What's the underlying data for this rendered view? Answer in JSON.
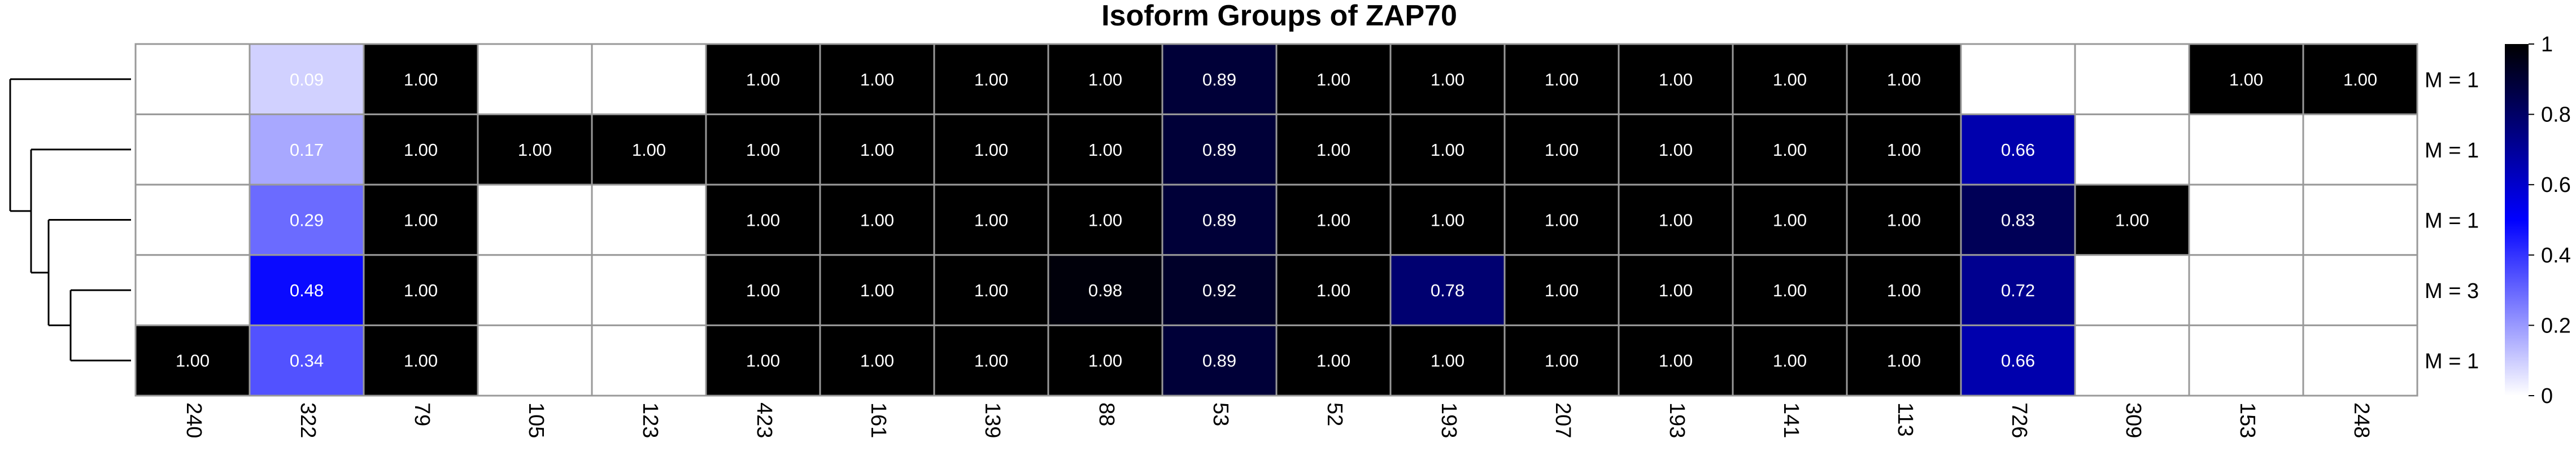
{
  "chart_data": {
    "type": "heatmap",
    "title": "Isoform Groups of ZAP70",
    "columns": [
      "240",
      "322",
      "79",
      "105",
      "123",
      "423",
      "161",
      "139",
      "88",
      "53",
      "52",
      "193",
      "207",
      "193",
      "141",
      "113",
      "726",
      "309",
      "153",
      "248"
    ],
    "row_labels": [
      "M = 1",
      "M = 1",
      "M = 1",
      "M = 3",
      "M = 1"
    ],
    "values": [
      [
        null,
        0.09,
        1.0,
        null,
        null,
        1.0,
        1.0,
        1.0,
        1.0,
        0.89,
        1.0,
        1.0,
        1.0,
        1.0,
        1.0,
        1.0,
        null,
        null,
        1.0,
        1.0
      ],
      [
        null,
        0.17,
        1.0,
        1.0,
        1.0,
        1.0,
        1.0,
        1.0,
        1.0,
        0.89,
        1.0,
        1.0,
        1.0,
        1.0,
        1.0,
        1.0,
        0.66,
        null,
        null,
        null
      ],
      [
        null,
        0.29,
        1.0,
        null,
        null,
        1.0,
        1.0,
        1.0,
        1.0,
        0.89,
        1.0,
        1.0,
        1.0,
        1.0,
        1.0,
        1.0,
        0.83,
        1.0,
        null,
        null
      ],
      [
        null,
        0.48,
        1.0,
        null,
        null,
        1.0,
        1.0,
        1.0,
        0.98,
        0.92,
        1.0,
        0.78,
        1.0,
        1.0,
        1.0,
        1.0,
        0.72,
        null,
        null,
        null
      ],
      [
        1.0,
        0.34,
        1.0,
        null,
        null,
        1.0,
        1.0,
        1.0,
        1.0,
        0.89,
        1.0,
        1.0,
        1.0,
        1.0,
        1.0,
        1.0,
        0.66,
        null,
        null,
        null
      ]
    ],
    "colorbar": {
      "range": [
        0,
        1
      ],
      "ticks": [
        "0",
        "0.2",
        "0.4",
        "0.6",
        "0.8",
        "1"
      ],
      "colors": [
        "#ffffff",
        "#0000ff",
        "#000000"
      ]
    },
    "dendrogram": "left"
  }
}
